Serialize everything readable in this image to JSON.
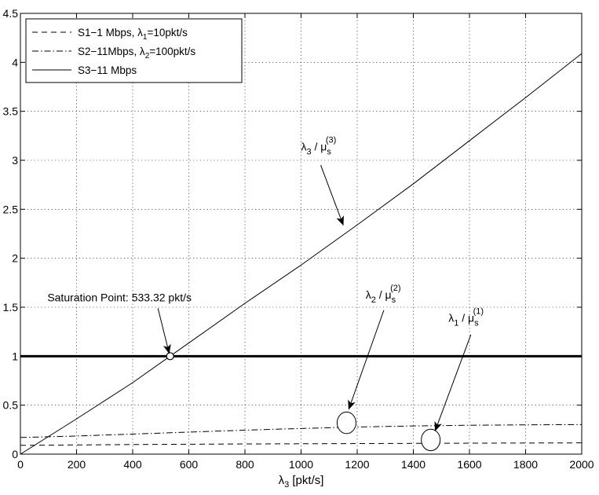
{
  "chart_data": {
    "type": "line",
    "title": "",
    "xlabel": "λ3 [pkt/s]",
    "xlabel_main": "λ",
    "xlabel_sub": "3",
    "xlabel_unit": " [pkt/s]",
    "ylabel": "",
    "xlim": [
      0,
      2000
    ],
    "ylim": [
      0,
      4.5
    ],
    "xticks": [
      0,
      200,
      400,
      600,
      800,
      1000,
      1200,
      1400,
      1600,
      1800,
      2000
    ],
    "yticks": [
      0,
      0.5,
      1,
      1.5,
      2,
      2.5,
      3,
      3.5,
      4,
      4.5
    ],
    "xtick_labels": [
      "0",
      "200",
      "400",
      "600",
      "800",
      "1000",
      "1200",
      "1400",
      "1600",
      "1800",
      "2000"
    ],
    "ytick_labels": [
      "0",
      "0.5",
      "1",
      "1.5",
      "2",
      "2.5",
      "3",
      "3.5",
      "4",
      "4.5"
    ],
    "grid": true,
    "legend_position": "top-left",
    "series": [
      {
        "name": "S1−1 Mbps, λ1=10pkt/s",
        "legend_main": "S1−1 Mbps, λ",
        "legend_sub": "1",
        "legend_tail": "=10pkt/s",
        "style": "dashed",
        "x": [
          0,
          400,
          800,
          1200,
          1600,
          2000
        ],
        "y": [
          0.09,
          0.098,
          0.104,
          0.108,
          0.112,
          0.115
        ]
      },
      {
        "name": "S2−11Mbps, λ2=100pkt/s",
        "legend_main": "S2−11Mbps, λ",
        "legend_sub": "2",
        "legend_tail": "=100pkt/s",
        "style": "dashdot",
        "x": [
          0,
          200,
          400,
          600,
          800,
          1000,
          1200,
          1400,
          1600,
          1800,
          2000
        ],
        "y": [
          0.17,
          0.185,
          0.205,
          0.225,
          0.245,
          0.262,
          0.277,
          0.288,
          0.295,
          0.299,
          0.302
        ]
      },
      {
        "name": "S3−11 Mbps",
        "legend_main": "S3−11 Mbps",
        "legend_sub": "",
        "legend_tail": "",
        "style": "solid",
        "x": [
          0,
          200,
          400,
          533.32,
          800,
          1000,
          1200,
          1400,
          1600,
          1800,
          2000
        ],
        "y": [
          0,
          0.36,
          0.73,
          1.0,
          1.54,
          1.93,
          2.34,
          2.76,
          3.2,
          3.64,
          4.09
        ]
      },
      {
        "name": "",
        "style": "thick",
        "x": [
          0,
          2000
        ],
        "y": [
          1,
          1
        ]
      }
    ],
    "saturation_point": {
      "x": 533.32,
      "y": 1.0
    },
    "annotations": [
      {
        "id": "saturation",
        "text": "Saturation Point: 533.32 pkt/s",
        "text_x": 96,
        "text_y": 1.56,
        "arrow_from": [
          490,
          1.49
        ],
        "arrow_to": [
          530,
          1.03
        ]
      },
      {
        "id": "lambda3",
        "main": "λ",
        "sub": "3",
        "mid": " / μ",
        "sub2": "s",
        "sup": "(3)",
        "text_x": 1000,
        "text_y": 3.1,
        "arrow_from": [
          1070,
          2.95
        ],
        "arrow_to": [
          1150,
          2.34
        ]
      },
      {
        "id": "lambda2",
        "main": "λ",
        "sub": "2",
        "mid": " / μ",
        "sub2": "s",
        "sup": "(2)",
        "text_x": 1230,
        "text_y": 1.59,
        "arrow_from": [
          1295,
          1.47
        ],
        "arrow_to": [
          1170,
          0.46
        ]
      },
      {
        "id": "lambda1",
        "main": "λ",
        "sub": "1",
        "mid": " / μ",
        "sub2": "s",
        "sup": "(1)",
        "text_x": 1525,
        "text_y": 1.35,
        "arrow_from": [
          1605,
          1.22
        ],
        "arrow_to": [
          1478,
          0.24
        ]
      }
    ],
    "markers": [
      {
        "shape": "ellipse",
        "x": 1162,
        "y": 0.32,
        "rx": 12,
        "ry": 0.11
      },
      {
        "shape": "ellipse",
        "x": 1462,
        "y": 0.145,
        "rx": 12,
        "ry": 0.11
      }
    ]
  }
}
